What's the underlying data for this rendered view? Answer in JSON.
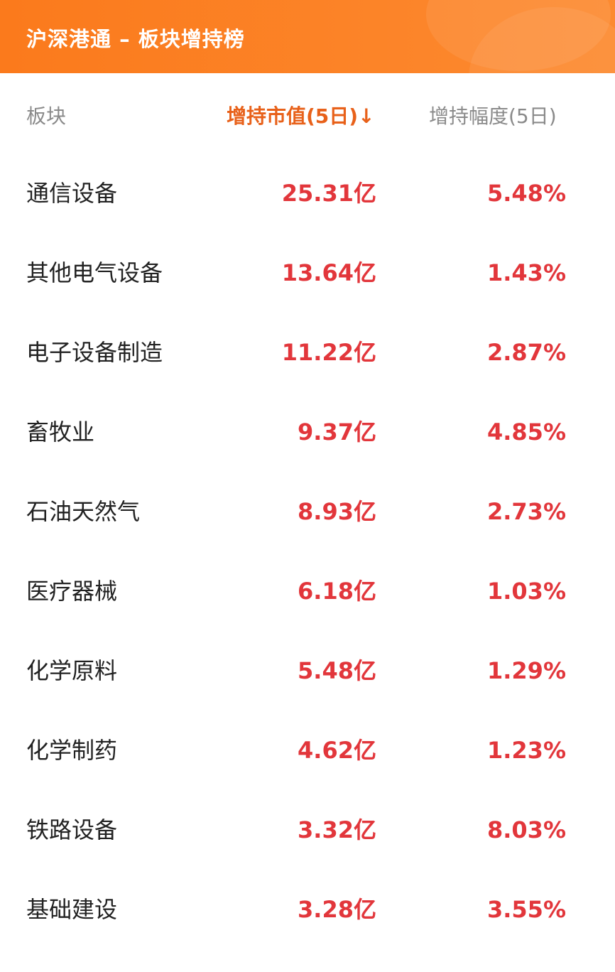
{
  "header": {
    "title": "沪深港通 – 板块增持榜"
  },
  "columns": {
    "sector": "板块",
    "value": "增持市值(5日)↓",
    "pct": "增持幅度(5日)"
  },
  "colors": {
    "brand": "#fb7a1c",
    "active_sort": "#e8611a",
    "up": "#e2363b"
  },
  "rows": [
    {
      "sector": "通信设备",
      "value": "25.31亿",
      "pct": "5.48%"
    },
    {
      "sector": "其他电气设备",
      "value": "13.64亿",
      "pct": "1.43%"
    },
    {
      "sector": "电子设备制造",
      "value": "11.22亿",
      "pct": "2.87%"
    },
    {
      "sector": "畜牧业",
      "value": "9.37亿",
      "pct": "4.85%"
    },
    {
      "sector": "石油天然气",
      "value": "8.93亿",
      "pct": "2.73%"
    },
    {
      "sector": "医疗器械",
      "value": "6.18亿",
      "pct": "1.03%"
    },
    {
      "sector": "化学原料",
      "value": "5.48亿",
      "pct": "1.29%"
    },
    {
      "sector": "化学制药",
      "value": "4.62亿",
      "pct": "1.23%"
    },
    {
      "sector": "铁路设备",
      "value": "3.32亿",
      "pct": "8.03%"
    },
    {
      "sector": "基础建设",
      "value": "3.28亿",
      "pct": "3.55%"
    }
  ]
}
